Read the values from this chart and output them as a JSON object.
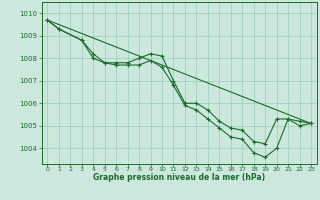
{
  "bg_color": "#cce8dd",
  "grid_color": "#99ccbb",
  "line_color": "#1a6b2a",
  "title": "Graphe pression niveau de la mer (hPa)",
  "xlim": [
    -0.5,
    23.5
  ],
  "ylim": [
    1003.3,
    1010.5
  ],
  "yticks": [
    1004,
    1005,
    1006,
    1007,
    1008,
    1009,
    1010
  ],
  "xticks": [
    0,
    1,
    2,
    3,
    4,
    5,
    6,
    7,
    8,
    9,
    10,
    11,
    12,
    13,
    14,
    15,
    16,
    17,
    18,
    19,
    20,
    21,
    22,
    23
  ],
  "line1_x": [
    0,
    1,
    3,
    4,
    5,
    6,
    7,
    8,
    9,
    10,
    11,
    12,
    13,
    14,
    15,
    16,
    17,
    18,
    19,
    20,
    21,
    22,
    23
  ],
  "line1_y": [
    1009.7,
    1009.3,
    1008.8,
    1008.2,
    1007.8,
    1007.8,
    1007.8,
    1008.0,
    1008.2,
    1008.1,
    1007.0,
    1006.0,
    1006.0,
    1005.7,
    1005.2,
    1004.9,
    1004.8,
    1004.3,
    1004.2,
    1005.3,
    1005.3,
    1005.2,
    1005.1
  ],
  "line2_x": [
    0,
    1,
    3,
    4,
    5,
    6,
    7,
    8,
    9,
    10,
    11,
    12,
    13,
    14,
    15,
    16,
    17,
    18,
    19,
    20,
    21,
    22,
    23
  ],
  "line2_y": [
    1009.7,
    1009.3,
    1008.8,
    1008.0,
    1007.8,
    1007.7,
    1007.7,
    1007.7,
    1007.9,
    1007.6,
    1006.8,
    1005.9,
    1005.7,
    1005.3,
    1004.9,
    1004.5,
    1004.4,
    1003.8,
    1003.6,
    1004.0,
    1005.3,
    1005.0,
    1005.1
  ],
  "trend_x": [
    0,
    23
  ],
  "trend_y": [
    1009.7,
    1005.1
  ]
}
